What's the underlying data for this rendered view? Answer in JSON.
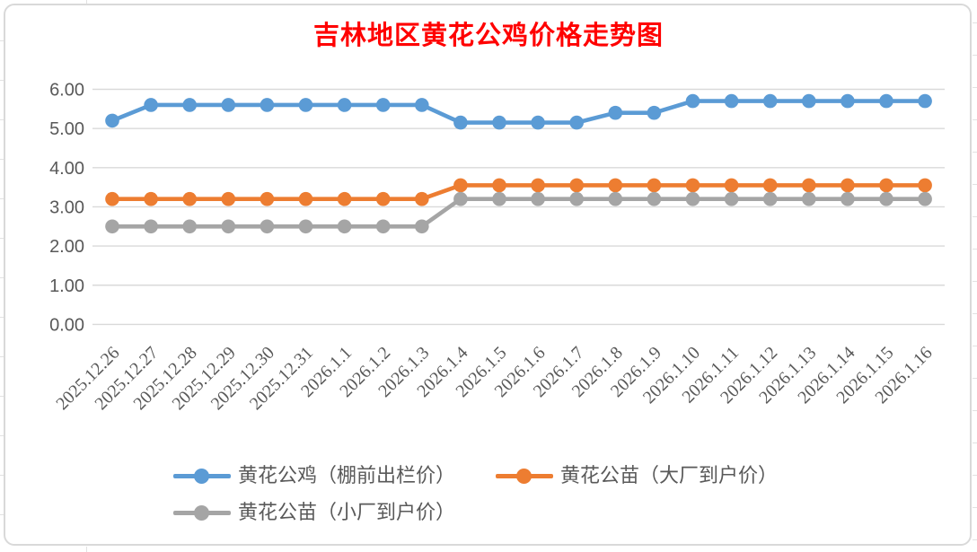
{
  "chart_data": {
    "type": "line",
    "title": "吉林地区黄花公鸡价格走势图",
    "categories": [
      "2025.12.26",
      "2025.12.27",
      "2025.12.28",
      "2025.12.29",
      "2025.12.30",
      "2025.12.31",
      "2026.1.1",
      "2026.1.2",
      "2026.1.3",
      "2026.1.4",
      "2026.1.5",
      "2026.1.6",
      "2026.1.7",
      "2026.1.8",
      "2026.1.9",
      "2026.1.10",
      "2026.1.11",
      "2026.1.12",
      "2026.1.13",
      "2026.1.14",
      "2026.1.15",
      "2026.1.16"
    ],
    "series": [
      {
        "name": "黄花公鸡（棚前出栏价）",
        "color": "#5B9BD5",
        "values": [
          5.2,
          5.6,
          5.6,
          5.6,
          5.6,
          5.6,
          5.6,
          5.6,
          5.6,
          5.15,
          5.15,
          5.15,
          5.15,
          5.4,
          5.4,
          5.7,
          5.7,
          5.7,
          5.7,
          5.7,
          5.7,
          5.7
        ]
      },
      {
        "name": "黄花公苗（大厂到户价）",
        "color": "#ED7D31",
        "values": [
          3.2,
          3.2,
          3.2,
          3.2,
          3.2,
          3.2,
          3.2,
          3.2,
          3.2,
          3.55,
          3.55,
          3.55,
          3.55,
          3.55,
          3.55,
          3.55,
          3.55,
          3.55,
          3.55,
          3.55,
          3.55,
          3.55
        ]
      },
      {
        "name": "黄花公苗（小厂到户价）",
        "color": "#A5A5A5",
        "values": [
          2.5,
          2.5,
          2.5,
          2.5,
          2.5,
          2.5,
          2.5,
          2.5,
          2.5,
          3.2,
          3.2,
          3.2,
          3.2,
          3.2,
          3.2,
          3.2,
          3.2,
          3.2,
          3.2,
          3.2,
          3.2,
          3.2
        ]
      }
    ],
    "ylim": [
      0,
      6
    ],
    "ytick_step": 1,
    "ytick_labels": [
      "0.00",
      "1.00",
      "2.00",
      "3.00",
      "4.00",
      "5.00",
      "6.00"
    ],
    "grid": "horizontal",
    "legend_position": "bottom",
    "colors": {
      "title": "#FF0000",
      "axis_text": "#595959",
      "gridline": "#D9D9D9",
      "chart_border": "#D9D9D9",
      "background": "#FFFFFF"
    }
  }
}
